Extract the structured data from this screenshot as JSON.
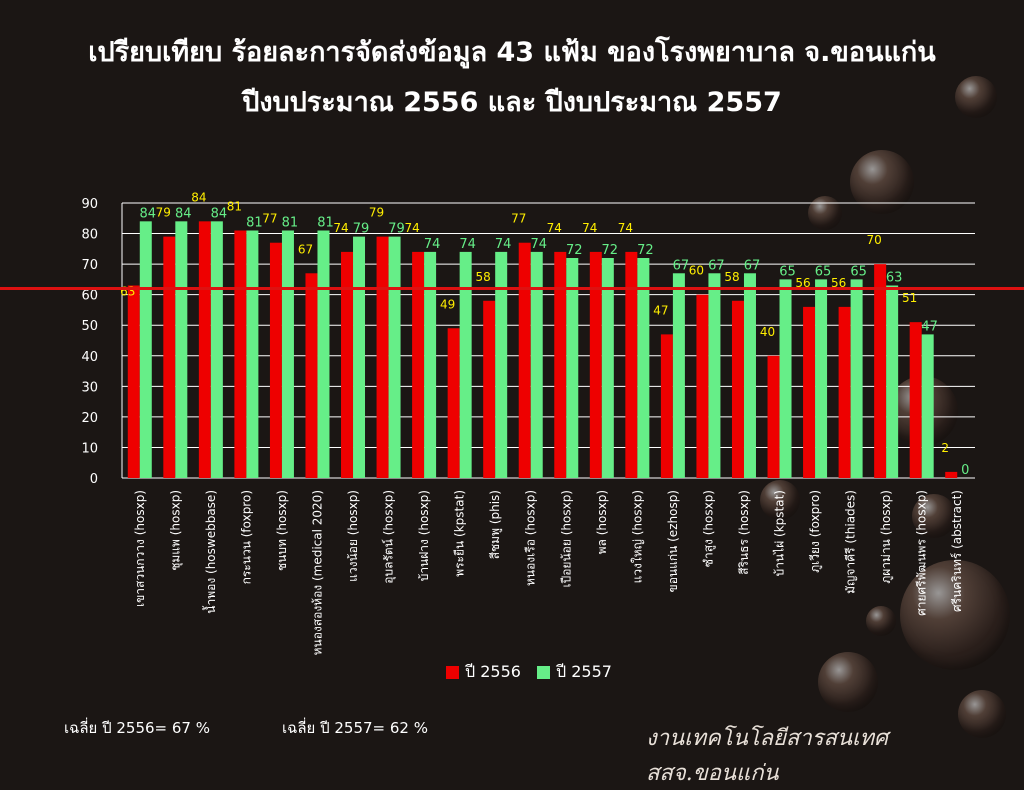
{
  "title_line1": "เปรียบเทียบ ร้อยละการจัดส่งข้อมูล 43 แฟ้ม ของโรงพยาบาล จ.ขอนแก่น",
  "title_line2": "ปีงบประมาณ 2556 และ ปีงบประมาณ 2557",
  "colors": {
    "series2556": "#ee0000",
    "series2557": "#66ee88",
    "label2556": "#ffee00",
    "label2557": "#66ee88",
    "refline": "#dd1111",
    "grid": "#ffffff",
    "text": "#ffffff"
  },
  "chart_data": {
    "type": "bar",
    "categories": [
      "เขาสวนกวาง (hosxp)",
      "ชุมแพ (hosxp)",
      "น้ำพอง (hoswebbase)",
      "กระนวน (foxpro)",
      "ชนบท (hosxp)",
      "หนองสองห้อง (medical 2020)",
      "แวงน้อย (hosxp)",
      "อุบลรัตน์ (hosxp)",
      "บ้านฝาง (hosxp)",
      "พระยืน (kpstat)",
      "สีชมพู (phis)",
      "หนองเรือ (hosxp)",
      "เปือยน้อย (hosxp)",
      "พล (hosxp)",
      "แวงใหญ่ (hosxp)",
      "ขอนแก่น (ezhosp)",
      "ซำสูง (hosxp)",
      "สีรินธร (hosxp)",
      "บ้านไผ่ (kpstat)",
      "ภูเวียง (foxpro)",
      "มัญจาคีรี (thiades)",
      "ภูผาม่าน (hosxp)",
      "ศายศรีพัฒนพร (hosxp)",
      "ศรีนครินทร์ (abstract)"
    ],
    "series": [
      {
        "name": "ปี 2556",
        "values": [
          63,
          79,
          84,
          81,
          77,
          67,
          74,
          79,
          74,
          49,
          58,
          77,
          74,
          74,
          74,
          47,
          60,
          58,
          40,
          56,
          56,
          70,
          51,
          2
        ]
      },
      {
        "name": "ปี 2557",
        "values": [
          84,
          84,
          84,
          81,
          81,
          81,
          79,
          79,
          74,
          74,
          74,
          74,
          72,
          72,
          72,
          67,
          67,
          67,
          65,
          65,
          65,
          63,
          47,
          0
        ]
      }
    ],
    "ylim": [
      0,
      90
    ],
    "yticks": [
      "0",
      "10",
      "20",
      "30",
      "40",
      "50",
      "60",
      "70",
      "80",
      "90"
    ],
    "reference_line": 62,
    "grid": true,
    "legend": "bottom-center"
  },
  "legend": {
    "item1": "ปี 2556",
    "item2": "ปี 2557"
  },
  "averages": {
    "avg2556": "เฉลี่ย ปี 2556= 67 %",
    "avg2557": "เฉลี่ย ปี 2557= 62 %"
  },
  "footer": "งานเทคโนโลยีสารสนเทศ สสจ.ขอนแก่น"
}
